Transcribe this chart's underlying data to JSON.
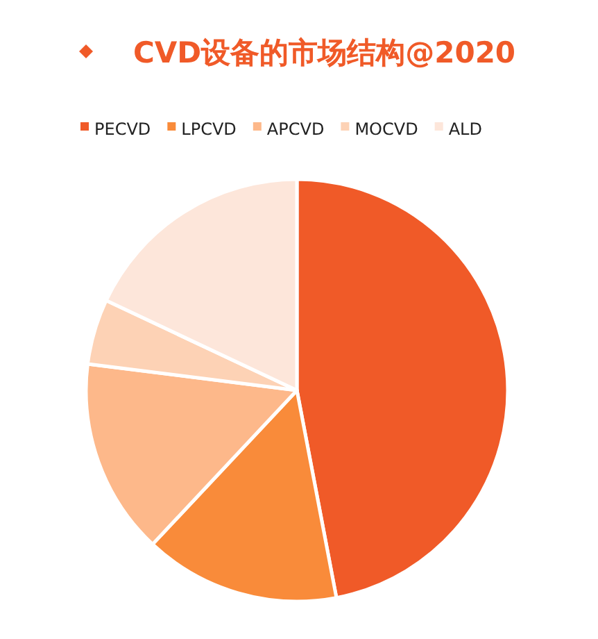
{
  "chart_data": {
    "type": "pie",
    "title": "CVD设备的市场结构@2020",
    "categories": [
      "PECVD",
      "LPCVD",
      "APCVD",
      "MOCVD",
      "ALD"
    ],
    "values": [
      47,
      15,
      15,
      5,
      18
    ],
    "colors": [
      "#f05a28",
      "#f98b3a",
      "#fdb88a",
      "#fdd2b5",
      "#fde6da"
    ],
    "legend": "top"
  }
}
